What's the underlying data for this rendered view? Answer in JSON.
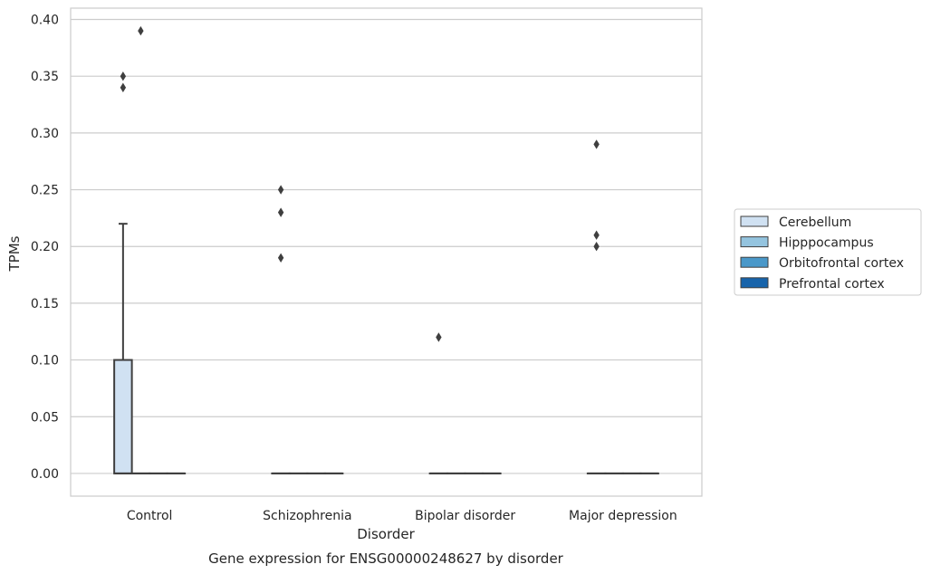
{
  "caption": "Gene expression for ENSG00000248627 by disorder",
  "chart_data": {
    "type": "box",
    "xlabel": "Disorder",
    "ylabel": "TPMs",
    "ylim": [
      -0.02,
      0.41
    ],
    "yticks": [
      0.0,
      0.05,
      0.1,
      0.15,
      0.2,
      0.25,
      0.3,
      0.35,
      0.4
    ],
    "ytick_labels": [
      "0.00",
      "0.05",
      "0.10",
      "0.15",
      "0.20",
      "0.25",
      "0.30",
      "0.35",
      "0.40"
    ],
    "grid": "horizontal",
    "legend_placement": "right",
    "categories": [
      "Control",
      "Schizophrenia",
      "Bipolar disorder",
      "Major depression"
    ],
    "series": [
      {
        "name": "Cerebellum",
        "color": "#d0e1f2",
        "boxes": [
          {
            "q1": 0.0,
            "median": 0.0,
            "q3": 0.1,
            "whisker_low": 0.0,
            "whisker_high": 0.22,
            "outliers": [
              0.34,
              0.35
            ]
          },
          {
            "q1": 0.0,
            "median": 0.0,
            "q3": 0.0,
            "whisker_low": 0.0,
            "whisker_high": 0.0,
            "outliers": [
              0.19,
              0.23,
              0.25
            ]
          },
          {
            "q1": 0.0,
            "median": 0.0,
            "q3": 0.0,
            "whisker_low": 0.0,
            "whisker_high": 0.0,
            "outliers": [
              0.12
            ]
          },
          {
            "q1": 0.0,
            "median": 0.0,
            "q3": 0.0,
            "whisker_low": 0.0,
            "whisker_high": 0.0,
            "outliers": [
              0.2,
              0.21,
              0.29
            ]
          }
        ]
      },
      {
        "name": "Hipppocampus",
        "color": "#94c4df",
        "boxes": [
          {
            "q1": 0.0,
            "median": 0.0,
            "q3": 0.0,
            "whisker_low": 0.0,
            "whisker_high": 0.0,
            "outliers": [
              0.39
            ]
          },
          {
            "q1": 0.0,
            "median": 0.0,
            "q3": 0.0,
            "whisker_low": 0.0,
            "whisker_high": 0.0,
            "outliers": []
          },
          {
            "q1": 0.0,
            "median": 0.0,
            "q3": 0.0,
            "whisker_low": 0.0,
            "whisker_high": 0.0,
            "outliers": []
          },
          {
            "q1": 0.0,
            "median": 0.0,
            "q3": 0.0,
            "whisker_low": 0.0,
            "whisker_high": 0.0,
            "outliers": []
          }
        ]
      },
      {
        "name": "Orbitofrontal cortex",
        "color": "#4a98c9",
        "boxes": [
          {
            "q1": 0.0,
            "median": 0.0,
            "q3": 0.0,
            "whisker_low": 0.0,
            "whisker_high": 0.0,
            "outliers": []
          },
          {
            "q1": 0.0,
            "median": 0.0,
            "q3": 0.0,
            "whisker_low": 0.0,
            "whisker_high": 0.0,
            "outliers": []
          },
          {
            "q1": 0.0,
            "median": 0.0,
            "q3": 0.0,
            "whisker_low": 0.0,
            "whisker_high": 0.0,
            "outliers": []
          },
          {
            "q1": 0.0,
            "median": 0.0,
            "q3": 0.0,
            "whisker_low": 0.0,
            "whisker_high": 0.0,
            "outliers": []
          }
        ]
      },
      {
        "name": "Prefrontal cortex",
        "color": "#1764ab",
        "boxes": [
          {
            "q1": 0.0,
            "median": 0.0,
            "q3": 0.0,
            "whisker_low": 0.0,
            "whisker_high": 0.0,
            "outliers": []
          },
          {
            "q1": 0.0,
            "median": 0.0,
            "q3": 0.0,
            "whisker_low": 0.0,
            "whisker_high": 0.0,
            "outliers": []
          },
          {
            "q1": 0.0,
            "median": 0.0,
            "q3": 0.0,
            "whisker_low": 0.0,
            "whisker_high": 0.0,
            "outliers": []
          },
          {
            "q1": 0.0,
            "median": 0.0,
            "q3": 0.0,
            "whisker_low": 0.0,
            "whisker_high": 0.0,
            "outliers": []
          }
        ]
      }
    ],
    "line_color": "#3f3f3f",
    "grid_color": "#cccccc",
    "frame_color": "#cccccc"
  }
}
